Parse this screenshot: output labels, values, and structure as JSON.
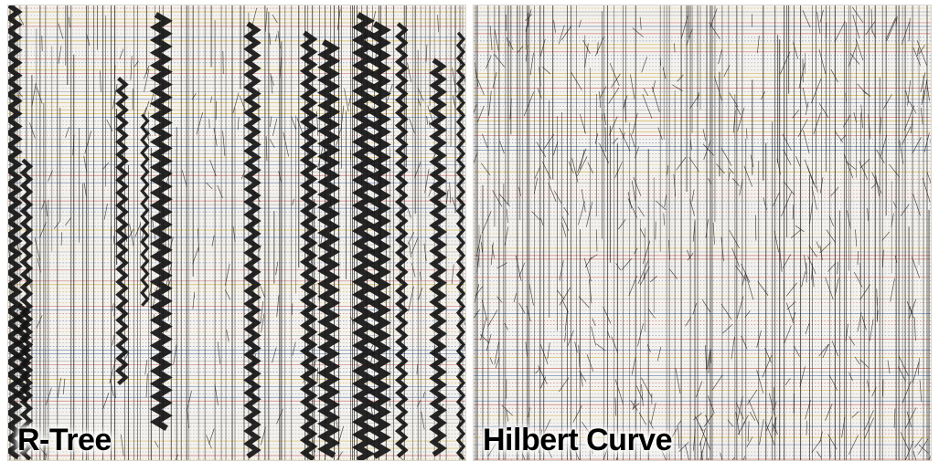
{
  "panels": [
    {
      "id": "rtree",
      "label": "R-Tree"
    },
    {
      "id": "hilbert",
      "label": "Hilbert Curve"
    }
  ],
  "colors": {
    "background": "#f4f2ee",
    "line": "#1a1a1a",
    "stripe_red": "#c0504d",
    "stripe_blue": "#4f6fa8",
    "stripe_yellow": "#c9a227"
  }
}
